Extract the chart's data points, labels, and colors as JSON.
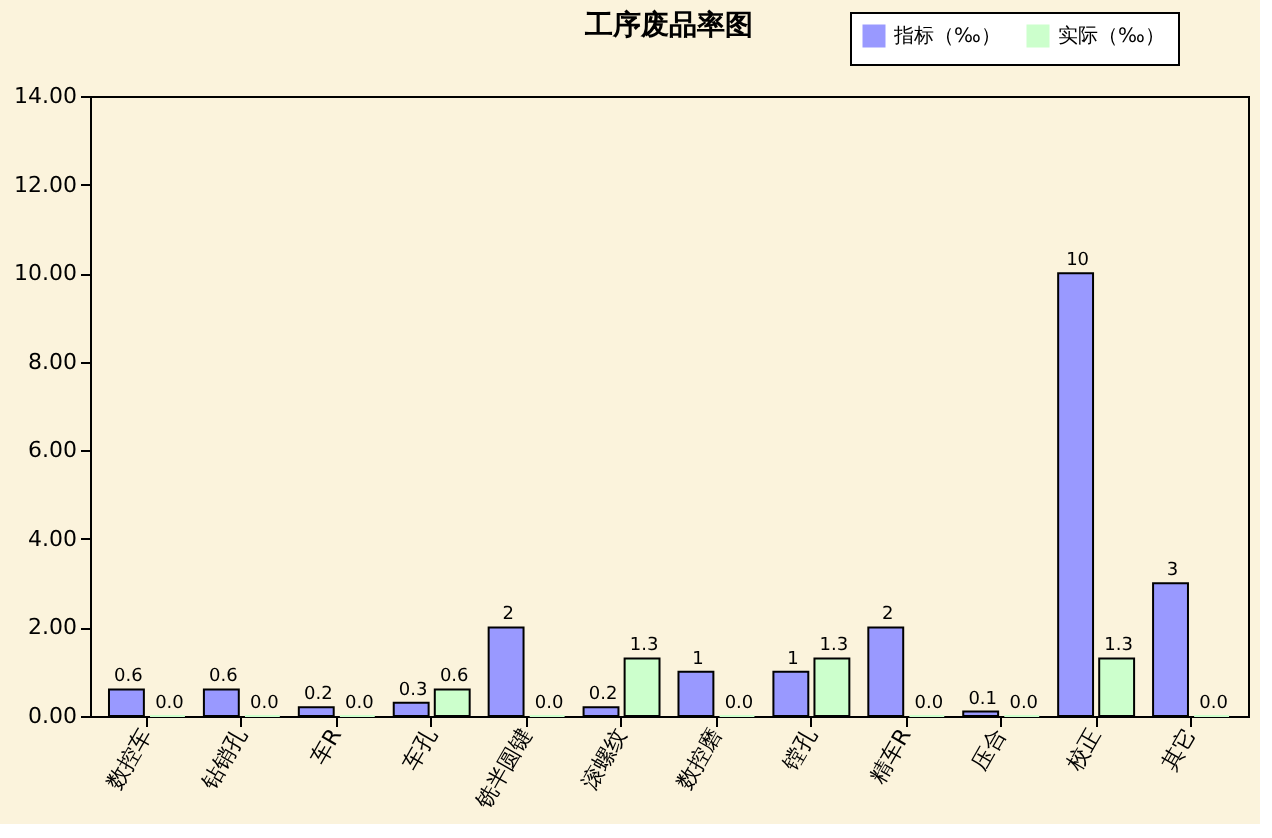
{
  "chart_data": {
    "type": "bar",
    "title": "工序废品率图",
    "categories": [
      "数控车",
      "钻销孔",
      "车R",
      "车孔",
      "铣半圆键",
      "滚螺纹",
      "数控磨",
      "镗孔",
      "精车R",
      "压合",
      "校正",
      "其它"
    ],
    "series": [
      {
        "name": "指标（‰）",
        "color": "#9999ff",
        "values": [
          0.6,
          0.6,
          0.2,
          0.3,
          2,
          0.2,
          1,
          1,
          2,
          0.1,
          10,
          3
        ],
        "value_labels": [
          "0.6",
          "0.6",
          "0.2",
          "0.3",
          "2",
          "0.2",
          "1",
          "1",
          "2",
          "0.1",
          "10",
          "3"
        ]
      },
      {
        "name": "实际（‰）",
        "color": "#ccffcc",
        "values": [
          0.0,
          0.0,
          0.0,
          0.6,
          0.0,
          1.3,
          0.0,
          1.3,
          0.0,
          0.0,
          1.3,
          0.0
        ],
        "value_labels": [
          "0.0",
          "0.0",
          "0.0",
          "0.6",
          "0.0",
          "1.3",
          "0.0",
          "1.3",
          "0.0",
          "0.0",
          "1.3",
          "0.0"
        ]
      }
    ],
    "ylim": [
      0,
      14
    ],
    "yticks": [
      {
        "value": 0,
        "label": "0.00"
      },
      {
        "value": 2,
        "label": "2.00"
      },
      {
        "value": 4,
        "label": "4.00"
      },
      {
        "value": 6,
        "label": "6.00"
      },
      {
        "value": 8,
        "label": "8.00"
      },
      {
        "value": 10,
        "label": "10.00"
      },
      {
        "value": 12,
        "label": "12.00"
      },
      {
        "value": 14,
        "label": "14.00"
      }
    ],
    "grid": false,
    "legend": "top right"
  }
}
